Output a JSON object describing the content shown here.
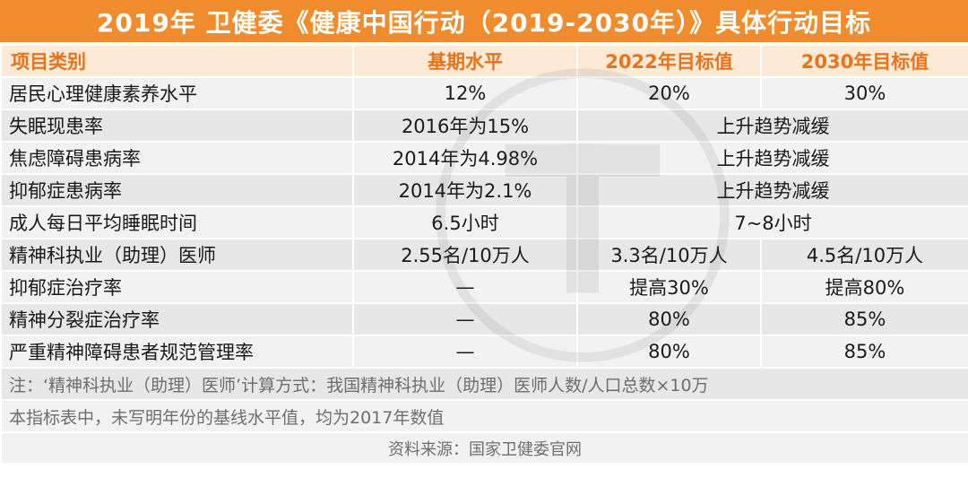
{
  "title": "2019年 卫健委《健康中国行动（2019-2030年）》具体行动目标",
  "header": {
    "col1": "项目类别",
    "col2": "基期水平",
    "col3": "2022年目标值",
    "col4": "2030年目标值"
  },
  "rows": [
    {
      "label": "居民心理健康素养水平",
      "base": "12%",
      "t2022": "20%",
      "t2030": "30%"
    },
    {
      "label": "失眠现患率",
      "base": "2016年为15%",
      "merged": "上升趋势减缓"
    },
    {
      "label": "焦虑障碍患病率",
      "base": "2014年为4.98%",
      "merged": "上升趋势减缓"
    },
    {
      "label": "抑郁症患病率",
      "base": "2014年为2.1%",
      "merged": "上升趋势减缓"
    },
    {
      "label": "成人每日平均睡眠时间",
      "base": "6.5小时",
      "merged": "7~8小时"
    },
    {
      "label": "精神科执业（助理）医师",
      "base": "2.55名/10万人",
      "t2022": "3.3名/10万人",
      "t2030": "4.5名/10万人"
    },
    {
      "label": "抑郁症治疗率",
      "base": "—",
      "t2022": "提高30%",
      "t2030": "提高80%"
    },
    {
      "label": "精神分裂症治疗率",
      "base": "—",
      "t2022": "80%",
      "t2030": "85%"
    },
    {
      "label": "严重精神障碍患者规范管理率",
      "base": "—",
      "t2022": "80%",
      "t2030": "85%"
    }
  ],
  "notes": {
    "note1": "注：‘精神科执业（助理）医师’计算方式：我国精神科执业（助理）医师人数/人口总数×10万",
    "note2": "本指标表中，未写明年份的基线水平值，均为2017年数值",
    "source": "资料来源：国家卫健委官网"
  },
  "colors": {
    "title_bg": "#f08c2d",
    "header_bg": "#fce9d6",
    "header_text": "#e8731b",
    "row_light": "#f2f2f2",
    "row_dark": "#e7e7e7"
  }
}
